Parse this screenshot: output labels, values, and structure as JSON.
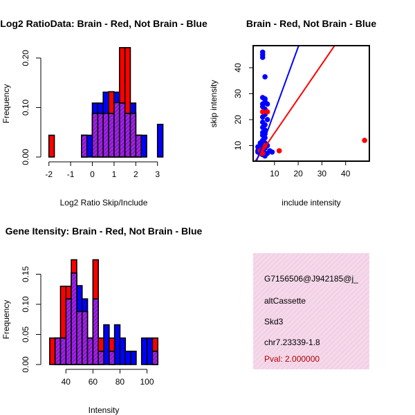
{
  "colors": {
    "red": "#ff0000",
    "blue": "#0000ff",
    "purple": "#a020f0",
    "overlap": "#8b1a8b",
    "info_bg": "#f5d8ea",
    "info_hatch": "#e9b9d6",
    "pval": "#b00000"
  },
  "chart_data": [
    {
      "type": "bar",
      "subtype": "overlapping-histogram",
      "title": "Log2 RatioData: Brain - Red, Not Brain - Blue",
      "xlabel": "Log2 Ratio Skip/Include",
      "ylabel": "Frequency",
      "xticks": [
        "-2",
        "-1",
        "0",
        "1",
        "2",
        "3"
      ],
      "xtick_values": [
        -2,
        -1,
        0,
        1,
        2,
        3
      ],
      "yticks": [
        "0.00",
        "0.10",
        "0.20"
      ],
      "ytick_values": [
        0,
        0.1,
        0.2
      ],
      "xlim": [
        -2.15,
        3.2
      ],
      "ylim": [
        0,
        0.225
      ],
      "bin_edges": [
        -2.0,
        -1.75,
        -1.5,
        -1.25,
        -1.0,
        -0.75,
        -0.5,
        -0.25,
        0.0,
        0.25,
        0.5,
        0.75,
        1.0,
        1.25,
        1.5,
        1.75,
        2.0,
        2.25,
        2.5,
        2.75,
        3.0,
        3.25
      ],
      "series": [
        {
          "name": "Brain",
          "color": "red",
          "values": [
            0.044,
            0,
            0,
            0,
            0,
            0,
            0.044,
            0,
            0.088,
            0.088,
            0.088,
            0.132,
            0.11,
            0.221,
            0.221,
            0.088,
            0.044,
            0,
            0,
            0,
            0
          ]
        },
        {
          "name": "Not Brain",
          "color": "blue",
          "values": [
            0,
            0,
            0,
            0,
            0,
            0,
            0.044,
            0.044,
            0.109,
            0.109,
            0.131,
            0.088,
            0.131,
            0.109,
            0.088,
            0.109,
            0.044,
            0.044,
            0,
            0,
            0.066
          ]
        }
      ]
    },
    {
      "type": "scatter",
      "title": "Brain - Red, Not Brain - Blue",
      "xlabel": "include intensity",
      "ylabel": "skip intensity",
      "xticks": [
        "10",
        "20",
        "30",
        "40"
      ],
      "xtick_values": [
        10,
        20,
        30,
        40
      ],
      "yticks": [
        "10",
        "20",
        "30",
        "40"
      ],
      "ytick_values": [
        10,
        20,
        30,
        40
      ],
      "xlim": [
        1,
        50
      ],
      "ylim": [
        4,
        48.5
      ],
      "series": [
        {
          "name": "Brain",
          "color": "red",
          "points": [
            [
              5,
              23
            ],
            [
              7,
              23
            ],
            [
              12,
              8
            ],
            [
              48,
              12
            ],
            [
              4,
              8
            ],
            [
              5,
              7
            ],
            [
              6,
              10
            ],
            [
              5,
              9
            ]
          ],
          "fit_line": {
            "intercept": 1.5,
            "slope": 1.33
          }
        },
        {
          "name": "Not Brain",
          "color": "blue",
          "points": [
            [
              5,
              46
            ],
            [
              5,
              45
            ],
            [
              5,
              44
            ],
            [
              6,
              36.5
            ],
            [
              5,
              28.5
            ],
            [
              6,
              28
            ],
            [
              6,
              27
            ],
            [
              5,
              26
            ],
            [
              7,
              26
            ],
            [
              5,
              25
            ],
            [
              6,
              24
            ],
            [
              6,
              22
            ],
            [
              5,
              21
            ],
            [
              7,
              20
            ],
            [
              5,
              19
            ],
            [
              6,
              18
            ],
            [
              5,
              17
            ],
            [
              6,
              16
            ],
            [
              5,
              15
            ],
            [
              6,
              14.5
            ],
            [
              5,
              14
            ],
            [
              6,
              13
            ],
            [
              5,
              12
            ],
            [
              4,
              11
            ],
            [
              6,
              11
            ],
            [
              5,
              10
            ],
            [
              7,
              10
            ],
            [
              3,
              9.5
            ],
            [
              4,
              9
            ],
            [
              6,
              9
            ],
            [
              3,
              8
            ],
            [
              5,
              8
            ],
            [
              8,
              8
            ],
            [
              3,
              7.5
            ],
            [
              4,
              7
            ],
            [
              6,
              7
            ],
            [
              7,
              7
            ],
            [
              9,
              7.5
            ],
            [
              5,
              6.5
            ],
            [
              6,
              6
            ]
          ],
          "fit_line": {
            "intercept": -2,
            "slope": 2.5
          }
        }
      ]
    },
    {
      "type": "bar",
      "subtype": "overlapping-histogram",
      "title": "Gene Itensity: Brain - Red, Not Brain - Blue",
      "xlabel": "Intensity",
      "ylabel": "Frequency",
      "xticks": [
        "40",
        "60",
        "80",
        "100"
      ],
      "xtick_values": [
        40,
        60,
        80,
        100
      ],
      "yticks": [
        "0.00",
        "0.05",
        "0.10",
        "0.15"
      ],
      "ytick_values": [
        0,
        0.05,
        0.1,
        0.15
      ],
      "xlim": [
        25,
        111
      ],
      "ylim": [
        0,
        0.185
      ],
      "bin_edges": [
        28,
        32,
        36,
        40,
        44,
        48,
        52,
        56,
        60,
        64,
        68,
        72,
        76,
        80,
        84,
        88,
        92,
        96,
        100,
        104,
        108
      ],
      "series": [
        {
          "name": "Brain",
          "color": "red",
          "values": [
            0.044,
            0.044,
            0.13,
            0.13,
            0.174,
            0.088,
            0.088,
            0.044,
            0.174,
            0.044,
            0,
            0.044,
            0,
            0,
            0,
            0,
            0,
            0,
            0,
            0.044
          ]
        },
        {
          "name": "Not Brain",
          "color": "blue",
          "values": [
            0,
            0.044,
            0.044,
            0.109,
            0.152,
            0.131,
            0.109,
            0.044,
            0.109,
            0.022,
            0.066,
            0.022,
            0.066,
            0.044,
            0.022,
            0.022,
            0,
            0.044,
            0.044,
            0.022
          ]
        }
      ]
    }
  ],
  "info": {
    "id": "G7156506@J942185@j_",
    "event_type": "altCassette",
    "tissue": "Skd3",
    "locus": "chr7.23339-1.8",
    "pval": "Pval: 2.000000"
  }
}
